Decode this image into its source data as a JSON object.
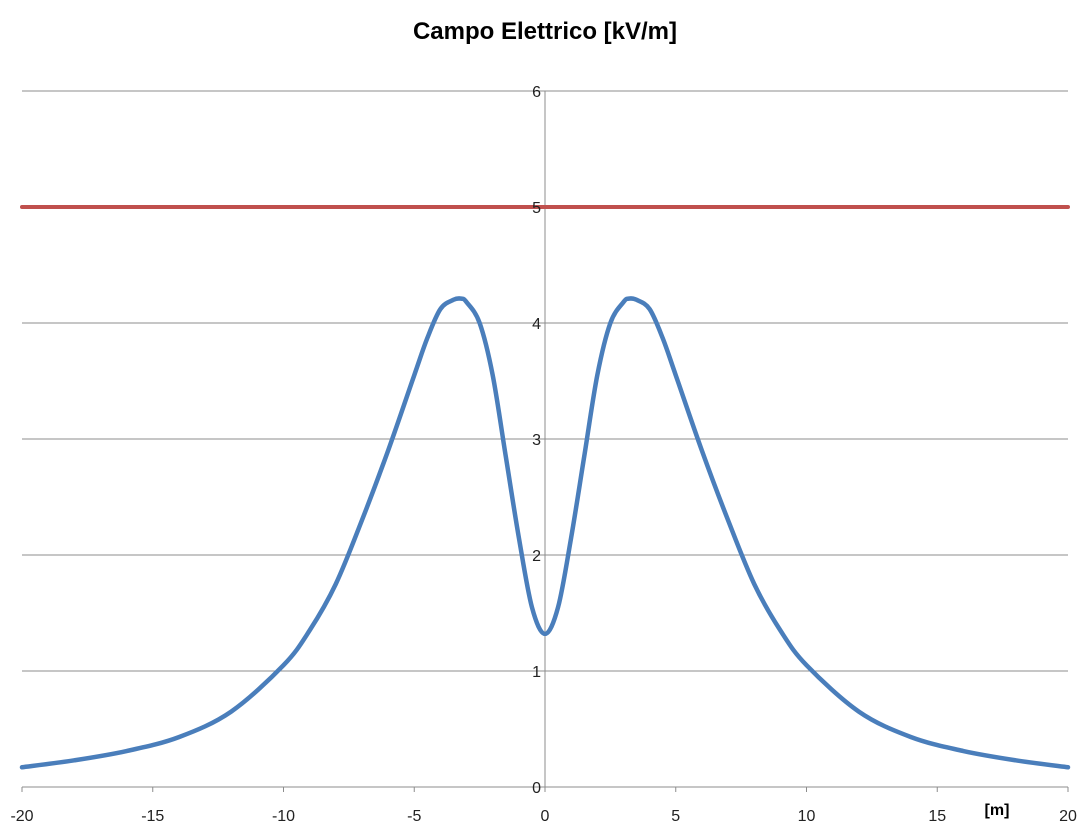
{
  "chart_data": {
    "type": "line",
    "title": "Campo Elettrico [kV/m]",
    "xlabel": "",
    "ylabel": "",
    "x_unit_label": "[m]",
    "xlim": [
      -20,
      20
    ],
    "ylim": [
      0,
      6
    ],
    "x_ticks": [
      -20,
      -15,
      -10,
      -5,
      0,
      5,
      10,
      15,
      20
    ],
    "y_ticks": [
      0,
      1,
      2,
      3,
      4,
      5,
      6
    ],
    "grid": "horizontal",
    "legend": "none",
    "series": [
      {
        "color": "#4A7EBB",
        "x": [
          -20,
          -18,
          -16,
          -14,
          -12,
          -10,
          -9,
          -8,
          -7,
          -6,
          -5,
          -4.5,
          -4,
          -3.5,
          -3.2,
          -3,
          -2.5,
          -2,
          -1.5,
          -1,
          -0.5,
          0,
          0.5,
          1,
          1.5,
          2,
          2.5,
          3,
          3.2,
          3.5,
          4,
          4.5,
          5,
          6,
          7,
          8,
          9,
          10,
          12,
          14,
          16,
          18,
          20
        ],
        "values": [
          0.17,
          0.23,
          0.31,
          0.43,
          0.65,
          1.05,
          1.35,
          1.75,
          2.3,
          2.9,
          3.55,
          3.87,
          4.12,
          4.2,
          4.21,
          4.18,
          4.0,
          3.55,
          2.85,
          2.15,
          1.55,
          1.32,
          1.55,
          2.15,
          2.85,
          3.55,
          4.0,
          4.18,
          4.21,
          4.2,
          4.12,
          3.87,
          3.55,
          2.9,
          2.3,
          1.75,
          1.35,
          1.05,
          0.65,
          0.43,
          0.31,
          0.23,
          0.17
        ]
      },
      {
        "color": "#C0504D",
        "x": [
          -20,
          20
        ],
        "values": [
          5,
          5
        ]
      }
    ]
  }
}
